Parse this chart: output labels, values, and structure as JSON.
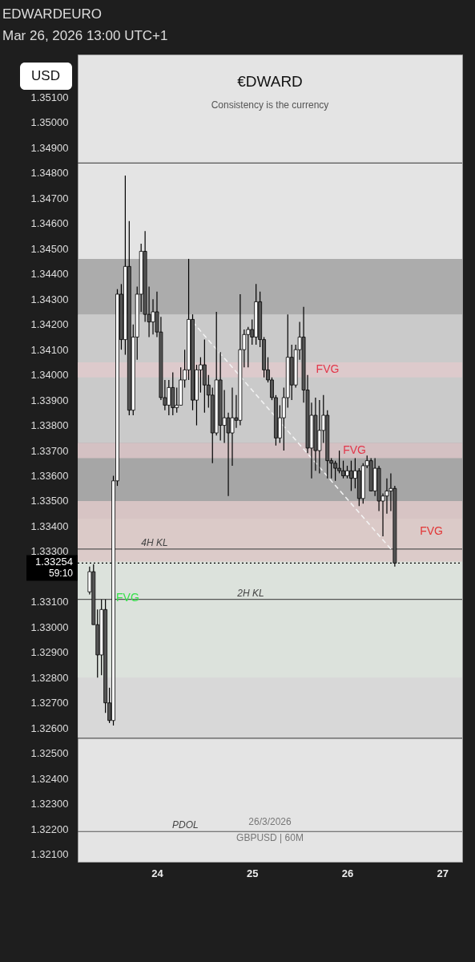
{
  "chart_data": {
    "type": "candlestick",
    "title": "€DWARD",
    "subtitle": "Consistency is the currency",
    "annotations": [
      "EDWARDEURO",
      "Mar 26, 2026 13:00 UTC+1",
      "USD",
      "59:10",
      "26/3/2026",
      "GBPUSD | 60M"
    ],
    "xlim": [
      "2026-03-23T04:00",
      "2026-03-27T05:00"
    ],
    "xticks": [
      {
        "value": "2026-03-24T00:00",
        "label": "24"
      },
      {
        "value": "2026-03-25T00:00",
        "label": "25"
      },
      {
        "value": "2026-03-26T00:00",
        "label": "26"
      },
      {
        "value": "2026-03-27T00:00",
        "label": "27"
      }
    ],
    "ylim": [
      1.3207,
      1.3527
    ],
    "yticks": [
      {
        "value": 1.321,
        "label": "1.32100"
      },
      {
        "value": 1.322,
        "label": "1.32200"
      },
      {
        "value": 1.323,
        "label": "1.32300"
      },
      {
        "value": 1.324,
        "label": "1.32400"
      },
      {
        "value": 1.325,
        "label": "1.32500"
      },
      {
        "value": 1.326,
        "label": "1.32600"
      },
      {
        "value": 1.327,
        "label": "1.32700"
      },
      {
        "value": 1.328,
        "label": "1.32800"
      },
      {
        "value": 1.329,
        "label": "1.32900"
      },
      {
        "value": 1.33,
        "label": "1.33000"
      },
      {
        "value": 1.331,
        "label": "1.33100"
      },
      {
        "value": 1.333,
        "label": "1.33300"
      },
      {
        "value": 1.334,
        "label": "1.33400"
      },
      {
        "value": 1.335,
        "label": "1.33500"
      },
      {
        "value": 1.336,
        "label": "1.33600"
      },
      {
        "value": 1.337,
        "label": "1.33700"
      },
      {
        "value": 1.338,
        "label": "1.33800"
      },
      {
        "value": 1.339,
        "label": "1.33900"
      },
      {
        "value": 1.34,
        "label": "1.34000"
      },
      {
        "value": 1.341,
        "label": "1.34100"
      },
      {
        "value": 1.342,
        "label": "1.34200"
      },
      {
        "value": 1.343,
        "label": "1.34300"
      },
      {
        "value": 1.344,
        "label": "1.34400"
      },
      {
        "value": 1.345,
        "label": "1.34500"
      },
      {
        "value": 1.346,
        "label": "1.34600"
      },
      {
        "value": 1.347,
        "label": "1.34700"
      },
      {
        "value": 1.348,
        "label": "1.34800"
      },
      {
        "value": 1.349,
        "label": "1.34900"
      },
      {
        "value": 1.35,
        "label": "1.35000"
      },
      {
        "value": 1.351,
        "label": "1.35100"
      }
    ],
    "x": [
      "2026-03-23T07:00",
      "2026-03-23T08:00",
      "2026-03-23T09:00",
      "2026-03-23T10:00",
      "2026-03-23T11:00",
      "2026-03-23T12:00",
      "2026-03-23T13:00",
      "2026-03-23T14:00",
      "2026-03-23T15:00",
      "2026-03-23T16:00",
      "2026-03-23T17:00",
      "2026-03-23T18:00",
      "2026-03-23T19:00",
      "2026-03-23T20:00",
      "2026-03-23T21:00",
      "2026-03-23T22:00",
      "2026-03-23T23:00",
      "2026-03-24T00:00",
      "2026-03-24T01:00",
      "2026-03-24T02:00",
      "2026-03-24T03:00",
      "2026-03-24T04:00",
      "2026-03-24T05:00",
      "2026-03-24T06:00",
      "2026-03-24T07:00",
      "2026-03-24T08:00",
      "2026-03-24T09:00",
      "2026-03-24T10:00",
      "2026-03-24T11:00",
      "2026-03-24T12:00",
      "2026-03-24T13:00",
      "2026-03-24T14:00",
      "2026-03-24T15:00",
      "2026-03-24T16:00",
      "2026-03-24T17:00",
      "2026-03-24T18:00",
      "2026-03-24T19:00",
      "2026-03-24T20:00",
      "2026-03-24T21:00",
      "2026-03-24T22:00",
      "2026-03-24T23:00",
      "2026-03-25T00:00",
      "2026-03-25T01:00",
      "2026-03-25T02:00",
      "2026-03-25T03:00",
      "2026-03-25T04:00",
      "2026-03-25T05:00",
      "2026-03-25T06:00",
      "2026-03-25T07:00",
      "2026-03-25T08:00",
      "2026-03-25T09:00",
      "2026-03-25T10:00",
      "2026-03-25T11:00",
      "2026-03-25T12:00",
      "2026-03-25T13:00",
      "2026-03-25T14:00",
      "2026-03-25T15:00",
      "2026-03-25T16:00",
      "2026-03-25T17:00",
      "2026-03-25T18:00",
      "2026-03-25T19:00",
      "2026-03-25T20:00",
      "2026-03-25T21:00",
      "2026-03-25T22:00",
      "2026-03-25T23:00",
      "2026-03-26T00:00",
      "2026-03-26T01:00",
      "2026-03-26T02:00",
      "2026-03-26T03:00",
      "2026-03-26T04:00",
      "2026-03-26T05:00",
      "2026-03-26T06:00",
      "2026-03-26T07:00",
      "2026-03-26T08:00",
      "2026-03-26T09:00",
      "2026-03-26T10:00",
      "2026-03-26T11:00",
      "2026-03-26T12:00"
    ],
    "ohlc": [
      [
        1.3314,
        1.3324,
        1.3313,
        1.3322
      ],
      [
        1.3322,
        1.3325,
        1.3301,
        1.3301
      ],
      [
        1.3301,
        1.3307,
        1.328,
        1.3289
      ],
      [
        1.3289,
        1.3311,
        1.3281,
        1.3307
      ],
      [
        1.3307,
        1.3311,
        1.3266,
        1.327
      ],
      [
        1.327,
        1.3276,
        1.3262,
        1.3263
      ],
      [
        1.3263,
        1.336,
        1.3261,
        1.3358
      ],
      [
        1.3358,
        1.3434,
        1.3356,
        1.3432
      ],
      [
        1.3432,
        1.3436,
        1.341,
        1.3414
      ],
      [
        1.3414,
        1.3479,
        1.3408,
        1.3443
      ],
      [
        1.3443,
        1.3461,
        1.3384,
        1.3386
      ],
      [
        1.3386,
        1.342,
        1.3384,
        1.3415
      ],
      [
        1.3415,
        1.3435,
        1.3406,
        1.3432
      ],
      [
        1.3432,
        1.3452,
        1.3425,
        1.3449
      ],
      [
        1.3449,
        1.3457,
        1.3421,
        1.3424
      ],
      [
        1.3424,
        1.3435,
        1.3415,
        1.3421
      ],
      [
        1.3421,
        1.343,
        1.3416,
        1.3425
      ],
      [
        1.3425,
        1.3433,
        1.3415,
        1.3417
      ],
      [
        1.3417,
        1.3423,
        1.339,
        1.3391
      ],
      [
        1.3391,
        1.3398,
        1.3386,
        1.3388
      ],
      [
        1.3388,
        1.3398,
        1.3384,
        1.3395
      ],
      [
        1.3395,
        1.3401,
        1.3384,
        1.3387
      ],
      [
        1.3387,
        1.3395,
        1.3385,
        1.3388
      ],
      [
        1.3388,
        1.3403,
        1.3388,
        1.3398
      ],
      [
        1.3398,
        1.341,
        1.3395,
        1.3402
      ],
      [
        1.3402,
        1.3446,
        1.3398,
        1.3422
      ],
      [
        1.3422,
        1.3424,
        1.3386,
        1.339
      ],
      [
        1.339,
        1.3404,
        1.338,
        1.3402
      ],
      [
        1.3402,
        1.3407,
        1.3393,
        1.3404
      ],
      [
        1.3404,
        1.3414,
        1.3385,
        1.3396
      ],
      [
        1.3396,
        1.34,
        1.3387,
        1.3392
      ],
      [
        1.3392,
        1.3395,
        1.3365,
        1.3377
      ],
      [
        1.3377,
        1.3425,
        1.3376,
        1.3398
      ],
      [
        1.3398,
        1.3409,
        1.3374,
        1.338
      ],
      [
        1.338,
        1.3394,
        1.3373,
        1.3383
      ],
      [
        1.3383,
        1.3385,
        1.3352,
        1.3377
      ],
      [
        1.3377,
        1.3395,
        1.3364,
        1.3383
      ],
      [
        1.3383,
        1.3392,
        1.3379,
        1.3382
      ],
      [
        1.3382,
        1.3432,
        1.338,
        1.341
      ],
      [
        1.341,
        1.3418,
        1.3403,
        1.3416
      ],
      [
        1.3416,
        1.3419,
        1.3403,
        1.3418
      ],
      [
        1.3418,
        1.3422,
        1.3412,
        1.3415
      ],
      [
        1.3415,
        1.3436,
        1.3412,
        1.3429
      ],
      [
        1.3429,
        1.3433,
        1.3411,
        1.3414
      ],
      [
        1.3414,
        1.3415,
        1.3399,
        1.3402
      ],
      [
        1.3402,
        1.3407,
        1.3397,
        1.3398
      ],
      [
        1.3398,
        1.3399,
        1.339,
        1.3391
      ],
      [
        1.3391,
        1.3392,
        1.3372,
        1.3375
      ],
      [
        1.3375,
        1.3388,
        1.3373,
        1.3383
      ],
      [
        1.3383,
        1.3395,
        1.337,
        1.3391
      ],
      [
        1.3391,
        1.3424,
        1.3387,
        1.3407
      ],
      [
        1.3407,
        1.3412,
        1.339,
        1.3396
      ],
      [
        1.3396,
        1.3412,
        1.3395,
        1.341
      ],
      [
        1.341,
        1.3421,
        1.3406,
        1.3415
      ],
      [
        1.3415,
        1.3427,
        1.3389,
        1.3394
      ],
      [
        1.3394,
        1.34,
        1.3369,
        1.3371
      ],
      [
        1.3371,
        1.3389,
        1.3359,
        1.3384
      ],
      [
        1.3384,
        1.3391,
        1.3362,
        1.337
      ],
      [
        1.337,
        1.339,
        1.3361,
        1.3378
      ],
      [
        1.3378,
        1.3392,
        1.3373,
        1.3384
      ],
      [
        1.3384,
        1.3386,
        1.3359,
        1.3366
      ],
      [
        1.3366,
        1.3367,
        1.3359,
        1.3365
      ],
      [
        1.3365,
        1.3366,
        1.3358,
        1.3363
      ],
      [
        1.3363,
        1.337,
        1.3361,
        1.3362
      ],
      [
        1.3362,
        1.3366,
        1.3359,
        1.336
      ],
      [
        1.336,
        1.3364,
        1.3359,
        1.3362
      ],
      [
        1.3362,
        1.3366,
        1.3354,
        1.3359
      ],
      [
        1.3359,
        1.3367,
        1.3355,
        1.3362
      ],
      [
        1.3362,
        1.3363,
        1.3348,
        1.3351
      ],
      [
        1.3351,
        1.3365,
        1.3349,
        1.3364
      ],
      [
        1.3364,
        1.3368,
        1.3363,
        1.3366
      ],
      [
        1.3366,
        1.3367,
        1.3354,
        1.3354
      ],
      [
        1.3354,
        1.3367,
        1.3352,
        1.3363
      ],
      [
        1.3363,
        1.3364,
        1.3346,
        1.335
      ],
      [
        1.335,
        1.3353,
        1.3336,
        1.3352
      ],
      [
        1.3352,
        1.3359,
        1.3345,
        1.3354
      ],
      [
        1.3354,
        1.3361,
        1.3346,
        1.3355
      ],
      [
        1.3355,
        1.3356,
        1.3324,
        1.33254
      ]
    ],
    "colors": [
      "#ffffff",
      "#555555",
      "#555555",
      "#ffffff",
      "#555555",
      "#555555",
      "#ffffff",
      "#ffffff",
      "#555555",
      "#ffffff",
      "#555555",
      "#ffffff",
      "#ffffff",
      "#ffffff",
      "#555555",
      "#555555",
      "#ffffff",
      "#555555",
      "#555555",
      "#555555",
      "#ffffff",
      "#555555",
      "#ffffff",
      "#ffffff",
      "#ffffff",
      "#ffffff",
      "#555555",
      "#ffffff",
      "#ffffff",
      "#555555",
      "#555555",
      "#555555",
      "#ffffff",
      "#555555",
      "#ffffff",
      "#555555",
      "#ffffff",
      "#555555",
      "#ffffff",
      "#ffffff",
      "#ffffff",
      "#555555",
      "#ffffff",
      "#555555",
      "#555555",
      "#555555",
      "#555555",
      "#555555",
      "#ffffff",
      "#ffffff",
      "#ffffff",
      "#555555",
      "#ffffff",
      "#ffffff",
      "#555555",
      "#555555",
      "#ffffff",
      "#555555",
      "#ffffff",
      "#ffffff",
      "#555555",
      "#555555",
      "#555555",
      "#555555",
      "#555555",
      "#ffffff",
      "#555555",
      "#ffffff",
      "#555555",
      "#ffffff",
      "#ffffff",
      "#555555",
      "#ffffff",
      "#555555",
      "#ffffff",
      "#ffffff",
      "#ffffff",
      "#555555"
    ],
    "series": [
      {
        "type": "line",
        "x": [
          "2026-03-24T09:00",
          "2026-03-26T11:00"
        ],
        "values": [
          1.3421,
          1.3331
        ],
        "color": "#f4f4f4",
        "line_style": "dashed"
      }
    ],
    "bands": [
      {
        "axis": "y",
        "from": 1.3256,
        "to": 1.335,
        "color": "#d4d4d4"
      },
      {
        "axis": "y",
        "from": 1.3332,
        "to": 1.3424,
        "color": "#c2c2c2"
      },
      {
        "axis": "y",
        "from": 1.3424,
        "to": 1.3446,
        "color": "#9a9a9a"
      },
      {
        "axis": "y",
        "from": 1.335,
        "to": 1.3373,
        "color": "#9a9a9a"
      },
      {
        "axis": "y",
        "from": 1.328,
        "to": 1.3343,
        "label": "FVG",
        "color": "#dde5de"
      },
      {
        "axis": "y",
        "from": 1.3399,
        "to": 1.3405,
        "label": "FVG",
        "color": "#e3c9cc"
      },
      {
        "axis": "y",
        "from": 1.3367,
        "to": 1.3373,
        "label": "FVG",
        "color": "#e3c9cc"
      },
      {
        "axis": "y",
        "from": 1.3326,
        "to": 1.335,
        "label": "FVG",
        "color": "#dcc3c3"
      }
    ],
    "ref_lines": [
      {
        "axis": "y",
        "value": 1.3484,
        "color": "#555555"
      },
      {
        "axis": "y",
        "value": 1.3331,
        "label": "4H KL",
        "color": "#555555"
      },
      {
        "axis": "y",
        "value": 1.3311,
        "label": "2H KL",
        "color": "#555555"
      },
      {
        "axis": "y",
        "value": 1.3256,
        "color": "#555555"
      },
      {
        "axis": "y",
        "value": 1.3219,
        "label": "PDOL",
        "color": "#555555"
      },
      {
        "axis": "y",
        "value": 1.33254,
        "label": "1.33254",
        "color": "#000000",
        "line_style": "dotted"
      }
    ],
    "grid": false
  }
}
